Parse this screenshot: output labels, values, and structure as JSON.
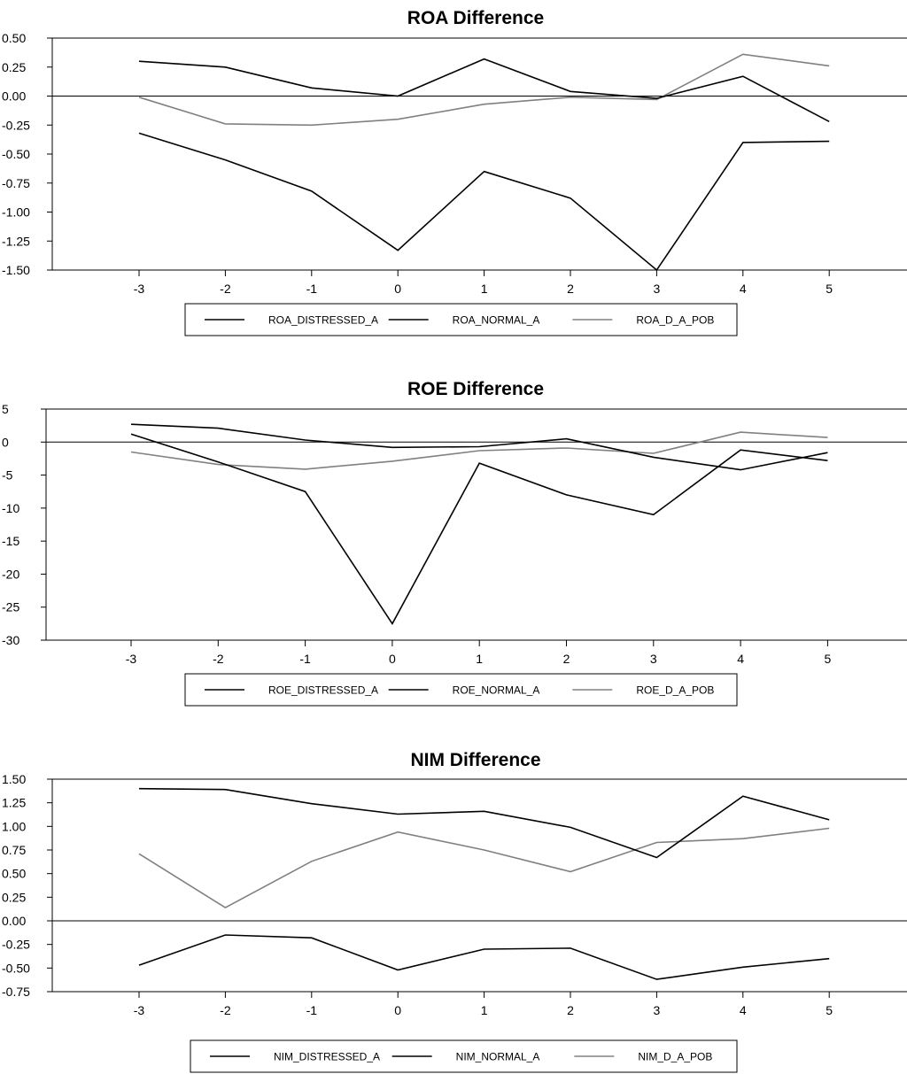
{
  "chart_data": [
    {
      "type": "line",
      "title": "ROA Difference",
      "x": [
        -3,
        -2,
        -1,
        0,
        1,
        2,
        3,
        4,
        5
      ],
      "ylim": [
        -1.5,
        0.5
      ],
      "yticks": [
        "0.50",
        "0.25",
        "0.00",
        "-0.25",
        "-0.50",
        "-0.75",
        "-1.00",
        "-1.25",
        "-1.50"
      ],
      "xticks": [
        "-3",
        "-2",
        "-1",
        "0",
        "1",
        "2",
        "3",
        "4",
        "5"
      ],
      "zero_line": true,
      "legend_position": "bottom",
      "series": [
        {
          "name": "ROA_DISTRESSED_A",
          "color": "#000000",
          "values": [
            -0.32,
            -0.55,
            -0.82,
            -1.33,
            -0.65,
            -0.88,
            -1.5,
            -0.4,
            -0.39
          ]
        },
        {
          "name": "ROA_NORMAL_A",
          "color": "#000000",
          "values": [
            0.3,
            0.25,
            0.07,
            0.0,
            0.32,
            0.04,
            -0.02,
            0.17,
            -0.22
          ]
        },
        {
          "name": "ROA_D_A_POB",
          "color": "#808080",
          "values": [
            -0.01,
            -0.24,
            -0.25,
            -0.2,
            -0.07,
            -0.01,
            -0.03,
            0.36,
            0.26
          ]
        }
      ]
    },
    {
      "type": "line",
      "title": "ROE Difference",
      "x": [
        -3,
        -2,
        -1,
        0,
        1,
        2,
        3,
        4,
        5
      ],
      "ylim": [
        -30,
        5
      ],
      "yticks": [
        "5",
        "0",
        "-5",
        "-10",
        "-15",
        "-20",
        "-25",
        "-30"
      ],
      "xticks": [
        "-3",
        "-2",
        "-1",
        "0",
        "1",
        "2",
        "3",
        "4",
        "5"
      ],
      "zero_line": true,
      "legend_position": "bottom",
      "series": [
        {
          "name": "ROE_DISTRESSED_A",
          "color": "#000000",
          "values": [
            1.2,
            -3.0,
            -7.5,
            -27.5,
            -3.2,
            -8.0,
            -11.0,
            -1.2,
            -2.8
          ]
        },
        {
          "name": "ROE_NORMAL_A",
          "color": "#000000",
          "values": [
            2.7,
            2.1,
            0.3,
            -0.8,
            -0.7,
            0.5,
            -2.3,
            -4.2,
            -1.6
          ]
        },
        {
          "name": "ROE_D_A_POB",
          "color": "#808080",
          "values": [
            -1.5,
            -3.4,
            -4.1,
            -2.9,
            -1.3,
            -0.9,
            -1.7,
            1.5,
            0.7
          ]
        }
      ]
    },
    {
      "type": "line",
      "title": "NIM Difference",
      "x": [
        -3,
        -2,
        -1,
        0,
        1,
        2,
        3,
        4,
        5
      ],
      "ylim": [
        -0.75,
        1.5
      ],
      "yticks": [
        "1.50",
        "1.25",
        "1.00",
        "0.75",
        "0.50",
        "0.25",
        "0.00",
        "-0.25",
        "-0.50",
        "-0.75"
      ],
      "xticks": [
        "-3",
        "-2",
        "-1",
        "0",
        "1",
        "2",
        "3",
        "4",
        "5"
      ],
      "zero_line": true,
      "legend_position": "bottom",
      "series": [
        {
          "name": "NIM_DISTRESSED_A",
          "color": "#000000",
          "values": [
            -0.47,
            -0.15,
            -0.18,
            -0.52,
            -0.3,
            -0.29,
            -0.62,
            -0.49,
            -0.4
          ]
        },
        {
          "name": "NIM_NORMAL_A",
          "color": "#000000",
          "values": [
            1.4,
            1.39,
            1.24,
            1.13,
            1.16,
            0.99,
            0.67,
            1.32,
            1.07
          ]
        },
        {
          "name": "NIM_D_A_POB",
          "color": "#808080",
          "values": [
            0.71,
            0.14,
            0.63,
            0.94,
            0.75,
            0.52,
            0.83,
            0.87,
            0.98
          ]
        }
      ]
    }
  ]
}
